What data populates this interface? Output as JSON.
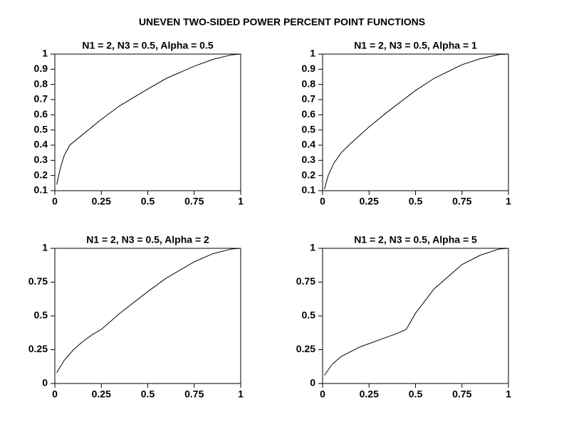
{
  "title": "UNEVEN TWO-SIDED POWER PERCENT POINT FUNCTIONS",
  "chart_data": [
    {
      "type": "line",
      "title": "N1 = 2, N3 = 0.5, Alpha = 0.5",
      "color": "#000000",
      "x": [
        0.01,
        0.03,
        0.05,
        0.08,
        0.15,
        0.25,
        0.35,
        0.5,
        0.6,
        0.75,
        0.85,
        0.95,
        1
      ],
      "values": [
        0.14,
        0.25,
        0.33,
        0.4,
        0.47,
        0.57,
        0.66,
        0.77,
        0.84,
        0.92,
        0.965,
        0.995,
        1
      ],
      "xlim": [
        0,
        1
      ],
      "ylim": [
        0.1,
        1
      ],
      "xticks": [
        0,
        0.25,
        0.5,
        0.75,
        1
      ],
      "yticks": [
        0.1,
        0.2,
        0.3,
        0.4,
        0.5,
        0.6,
        0.7,
        0.8,
        0.9,
        1
      ]
    },
    {
      "type": "line",
      "title": "N1 = 2, N3 = 0.5, Alpha = 1",
      "color": "#000000",
      "x": [
        0.01,
        0.03,
        0.06,
        0.1,
        0.15,
        0.25,
        0.35,
        0.5,
        0.6,
        0.75,
        0.85,
        0.95,
        1
      ],
      "values": [
        0.11,
        0.2,
        0.28,
        0.35,
        0.41,
        0.52,
        0.62,
        0.76,
        0.84,
        0.93,
        0.97,
        0.997,
        1
      ],
      "xlim": [
        0,
        1
      ],
      "ylim": [
        0.1,
        1
      ],
      "xticks": [
        0,
        0.25,
        0.5,
        0.75,
        1
      ],
      "yticks": [
        0.1,
        0.2,
        0.3,
        0.4,
        0.5,
        0.6,
        0.7,
        0.8,
        0.9,
        1
      ]
    },
    {
      "type": "line",
      "title": "N1 = 2, N3 = 0.5, Alpha = 2",
      "color": "#000000",
      "x": [
        0.01,
        0.05,
        0.1,
        0.15,
        0.2,
        0.25,
        0.35,
        0.5,
        0.6,
        0.75,
        0.85,
        0.95,
        1
      ],
      "values": [
        0.08,
        0.17,
        0.25,
        0.31,
        0.36,
        0.4,
        0.52,
        0.68,
        0.78,
        0.9,
        0.96,
        0.995,
        1
      ],
      "xlim": [
        0,
        1
      ],
      "ylim": [
        0,
        1
      ],
      "xticks": [
        0,
        0.25,
        0.5,
        0.75,
        1
      ],
      "yticks": [
        0,
        0.25,
        0.5,
        0.75,
        1
      ]
    },
    {
      "type": "line",
      "title": "N1 = 2, N3 = 0.5, Alpha = 5",
      "color": "#000000",
      "x": [
        0.01,
        0.05,
        0.1,
        0.2,
        0.3,
        0.4,
        0.45,
        0.5,
        0.6,
        0.75,
        0.85,
        0.95,
        1
      ],
      "values": [
        0.06,
        0.14,
        0.2,
        0.27,
        0.32,
        0.37,
        0.4,
        0.52,
        0.7,
        0.88,
        0.95,
        0.995,
        1
      ],
      "xlim": [
        0,
        1
      ],
      "ylim": [
        0,
        1
      ],
      "xticks": [
        0,
        0.25,
        0.5,
        0.75,
        1
      ],
      "yticks": [
        0,
        0.25,
        0.5,
        0.75,
        1
      ]
    }
  ]
}
